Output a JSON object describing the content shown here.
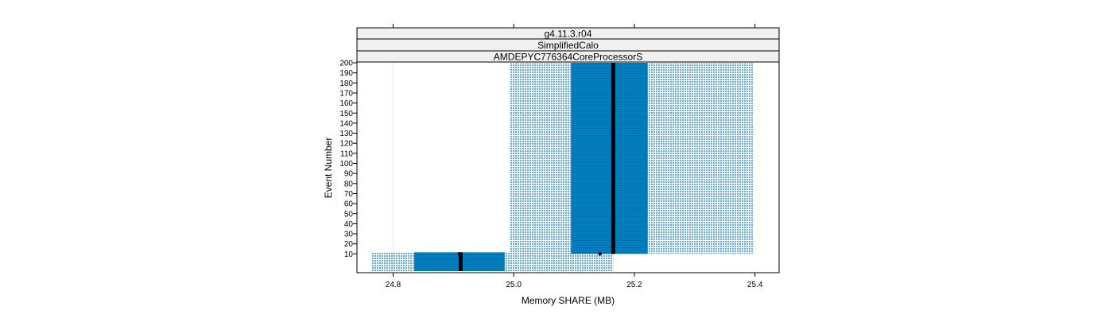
{
  "chart_data": {
    "type": "box",
    "strips": [
      "g4.11.3.r04",
      "SimplifiedCalo",
      "AMDEPYC776364CoreProcessorS"
    ],
    "xlabel": "Memory SHARE (MB)",
    "ylabel": "Event Number",
    "xlim": [
      24.74,
      25.44
    ],
    "ylim": [
      0,
      200
    ],
    "x_ticks": [
      {
        "value": 24.8,
        "label": "24.8"
      },
      {
        "value": 25.0,
        "label": "25.0"
      },
      {
        "value": 25.2,
        "label": "25.2"
      },
      {
        "value": 25.4,
        "label": "25.4"
      }
    ],
    "y_ticks": [
      {
        "value": 10,
        "label": "10"
      },
      {
        "value": 20,
        "label": "20"
      },
      {
        "value": 30,
        "label": "30"
      },
      {
        "value": 40,
        "label": "40"
      },
      {
        "value": 50,
        "label": "50"
      },
      {
        "value": 60,
        "label": "60"
      },
      {
        "value": 70,
        "label": "70"
      },
      {
        "value": 80,
        "label": "80"
      },
      {
        "value": 90,
        "label": "90"
      },
      {
        "value": 100,
        "label": "100"
      },
      {
        "value": 110,
        "label": "110"
      },
      {
        "value": 120,
        "label": "120"
      },
      {
        "value": 130,
        "label": "130"
      },
      {
        "value": 140,
        "label": "140"
      },
      {
        "value": 150,
        "label": "150"
      },
      {
        "value": 160,
        "label": "160"
      },
      {
        "value": 170,
        "label": "170"
      },
      {
        "value": 180,
        "label": "180"
      },
      {
        "value": 190,
        "label": "190"
      },
      {
        "value": 200,
        "label": "200"
      }
    ],
    "groups": [
      {
        "event_range": [
          0,
          10
        ],
        "whisker_low": 24.765,
        "q1": 24.835,
        "median": 24.912,
        "q3": 24.985,
        "whisker_high": 25.165
      },
      {
        "event_range": [
          10,
          200
        ],
        "whisker_low": 24.993,
        "q1": 25.095,
        "median": 25.165,
        "q3": 25.222,
        "whisker_high": 25.397
      }
    ],
    "outliers": [
      {
        "x": 24.91,
        "y": 10
      },
      {
        "x": 25.143,
        "y": 10
      }
    ],
    "vertical_gridlines": [
      24.8
    ],
    "colors": {
      "box": "#0080C0",
      "whisker": "#6AAEDB",
      "median": "#000000",
      "strip": "#F0F0F0",
      "grid": "#E6E6E6"
    }
  }
}
